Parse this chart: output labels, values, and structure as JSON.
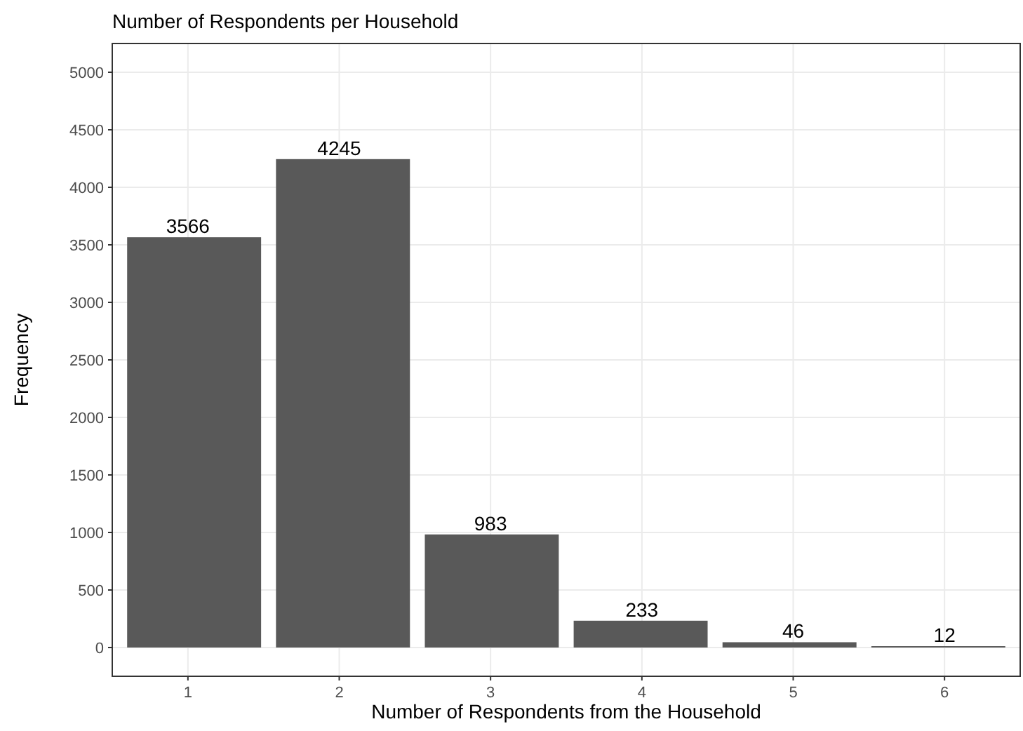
{
  "chart_data": {
    "type": "bar",
    "title": "Number of Respondents per Household",
    "xlabel": "Number of Respondents from the Household",
    "ylabel": "Frequency",
    "categories": [
      "1",
      "2",
      "3",
      "4",
      "5",
      "6"
    ],
    "values": [
      3566,
      4245,
      983,
      233,
      46,
      12
    ],
    "color": "#595959",
    "data_labels": true,
    "grid": true,
    "ylim": [
      -250,
      5250
    ],
    "yticks": [
      0,
      500,
      1000,
      1500,
      2000,
      2500,
      3000,
      3500,
      4000,
      4500,
      5000
    ]
  }
}
